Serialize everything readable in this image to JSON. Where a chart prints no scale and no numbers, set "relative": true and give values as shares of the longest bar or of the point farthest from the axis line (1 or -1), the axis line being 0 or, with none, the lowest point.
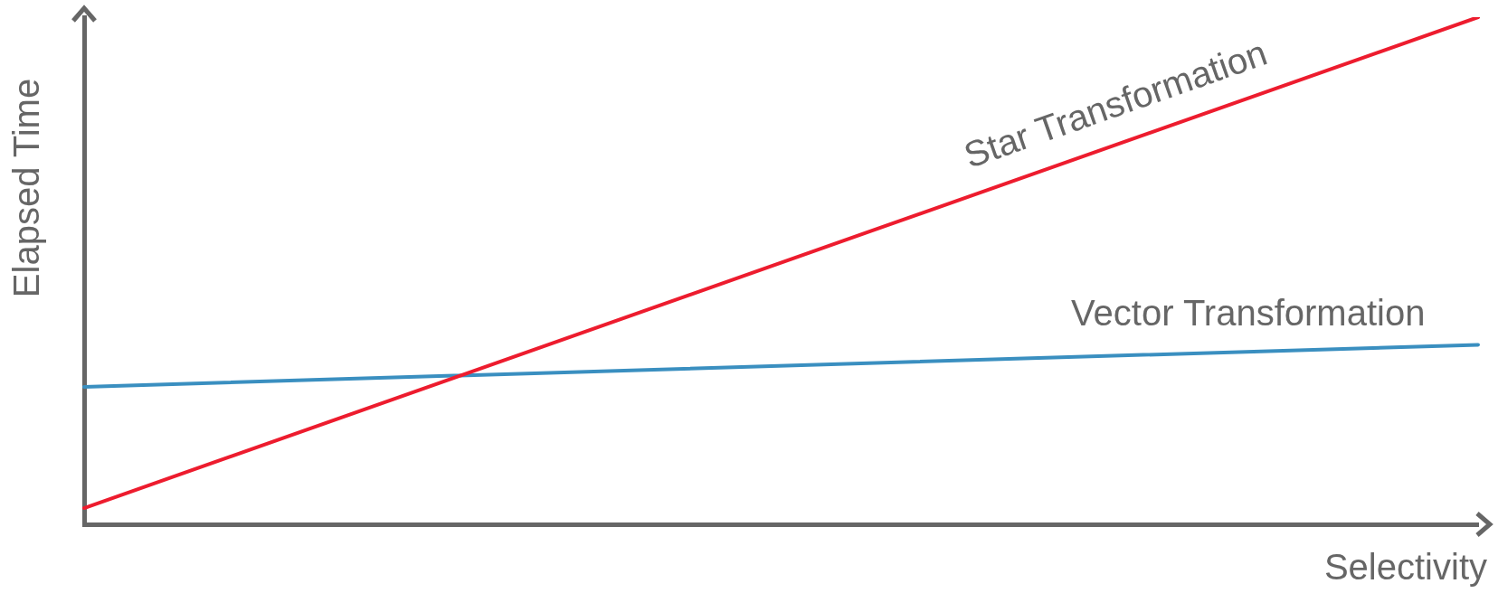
{
  "chart_data": {
    "type": "line",
    "xlabel": "Selectivity",
    "ylabel": "Elapsed Time",
    "relative": true,
    "categories": [
      null,
      null
    ],
    "legend": false,
    "marker": "none",
    "line_style": "solid",
    "series": [
      {
        "name": "Star Transformation",
        "color": "#ed1c2e",
        "values": [
          0.032,
          1
        ]
      },
      {
        "name": "Vector Transformation",
        "color": "#3a8fc0",
        "values": [
          0.271,
          0.354
        ]
      }
    ]
  }
}
